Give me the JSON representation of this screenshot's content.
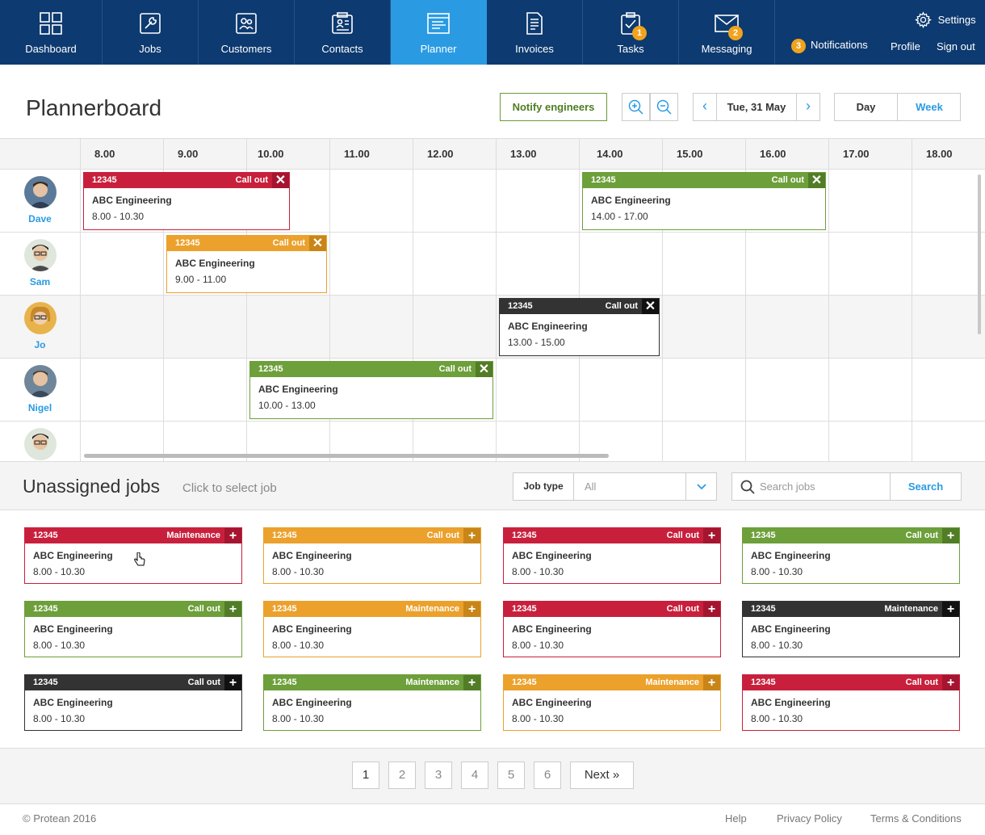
{
  "nav": {
    "items": [
      {
        "label": "Dashboard",
        "icon": "dashboard-icon"
      },
      {
        "label": "Jobs",
        "icon": "wrench-icon"
      },
      {
        "label": "Customers",
        "icon": "customers-icon"
      },
      {
        "label": "Contacts",
        "icon": "contacts-icon"
      },
      {
        "label": "Planner",
        "icon": "planner-icon",
        "active": true
      },
      {
        "label": "Invoices",
        "icon": "invoice-icon"
      },
      {
        "label": "Tasks",
        "icon": "clipboard-check-icon",
        "badge": "1"
      },
      {
        "label": "Messaging",
        "icon": "envelope-icon",
        "badge": "2"
      }
    ],
    "settings": "Settings",
    "notifications_badge": "3",
    "notifications": "Notifications",
    "profile": "Profile",
    "signout": "Sign out"
  },
  "header": {
    "title": "Plannerboard",
    "notify": "Notify engineers",
    "prev": "‹",
    "date": "Tue, 31 May",
    "next": "›",
    "day": "Day",
    "week": "Week"
  },
  "planner": {
    "hours": [
      "8.00",
      "9.00",
      "10.00",
      "11.00",
      "12.00",
      "13.00",
      "14.00",
      "15.00",
      "16.00",
      "17.00",
      "18.00"
    ],
    "engineers": [
      "Dave",
      "Sam",
      "Jo",
      "Nigel"
    ],
    "jobs": [
      {
        "ref": "12345",
        "type": "Call out",
        "customer": "ABC Engineering",
        "time": "8.00 - 10.30",
        "color": "red"
      },
      {
        "ref": "12345",
        "type": "Call out",
        "customer": "ABC Engineering",
        "time": "14.00 - 17.00",
        "color": "green"
      },
      {
        "ref": "12345",
        "type": "Call out",
        "customer": "ABC Engineering",
        "time": "9.00 - 11.00",
        "color": "orange"
      },
      {
        "ref": "12345",
        "type": "Call out",
        "customer": "ABC Engineering",
        "time": "13.00 - 15.00",
        "color": "black"
      },
      {
        "ref": "12345",
        "type": "Call out",
        "customer": "ABC Engineering",
        "time": "10.00 - 13.00",
        "color": "green"
      }
    ],
    "remove_glyph": "✕"
  },
  "unassigned": {
    "title": "Unassigned jobs",
    "hint": "Click to select job",
    "job_type_label": "Job type",
    "job_type_value": "All",
    "search_placeholder": "Search jobs",
    "search_button": "Search",
    "add_glyph": "+",
    "jobs": [
      {
        "ref": "12345",
        "type": "Maintenance",
        "customer": "ABC Engineering",
        "time": "8.00 - 10.30",
        "color": "red"
      },
      {
        "ref": "12345",
        "type": "Call out",
        "customer": "ABC Engineering",
        "time": "8.00 - 10.30",
        "color": "orange"
      },
      {
        "ref": "12345",
        "type": "Call out",
        "customer": "ABC Engineering",
        "time": "8.00 - 10.30",
        "color": "red"
      },
      {
        "ref": "12345",
        "type": "Call out",
        "customer": "ABC Engineering",
        "time": "8.00 - 10.30",
        "color": "green"
      },
      {
        "ref": "12345",
        "type": "Call out",
        "customer": "ABC Engineering",
        "time": "8.00 - 10.30",
        "color": "green"
      },
      {
        "ref": "12345",
        "type": "Maintenance",
        "customer": "ABC Engineering",
        "time": "8.00 - 10.30",
        "color": "orange"
      },
      {
        "ref": "12345",
        "type": "Call out",
        "customer": "ABC Engineering",
        "time": "8.00 - 10.30",
        "color": "red"
      },
      {
        "ref": "12345",
        "type": "Maintenance",
        "customer": "ABC Engineering",
        "time": "8.00 - 10.30",
        "color": "black"
      },
      {
        "ref": "12345",
        "type": "Call out",
        "customer": "ABC Engineering",
        "time": "8.00 - 10.30",
        "color": "black"
      },
      {
        "ref": "12345",
        "type": "Maintenance",
        "customer": "ABC Engineering",
        "time": "8.00 - 10.30",
        "color": "green"
      },
      {
        "ref": "12345",
        "type": "Maintenance",
        "customer": "ABC Engineering",
        "time": "8.00 - 10.30",
        "color": "orange"
      },
      {
        "ref": "12345",
        "type": "Call out",
        "customer": "ABC Engineering",
        "time": "8.00 - 10.30",
        "color": "red"
      }
    ]
  },
  "pagination": {
    "pages": [
      "1",
      "2",
      "3",
      "4",
      "5",
      "6"
    ],
    "current": "1",
    "next": "Next »"
  },
  "footer": {
    "copyright": "© Protean 2016",
    "help": "Help",
    "privacy": "Privacy Policy",
    "terms": "Terms & Conditions"
  },
  "colors": {
    "nav_bg": "#0d3a70",
    "active_tab": "#2a9be3",
    "red": "#c8203c",
    "orange": "#eba12c",
    "green": "#6d9f3a",
    "black": "#333333",
    "badge": "#f0a31d"
  }
}
